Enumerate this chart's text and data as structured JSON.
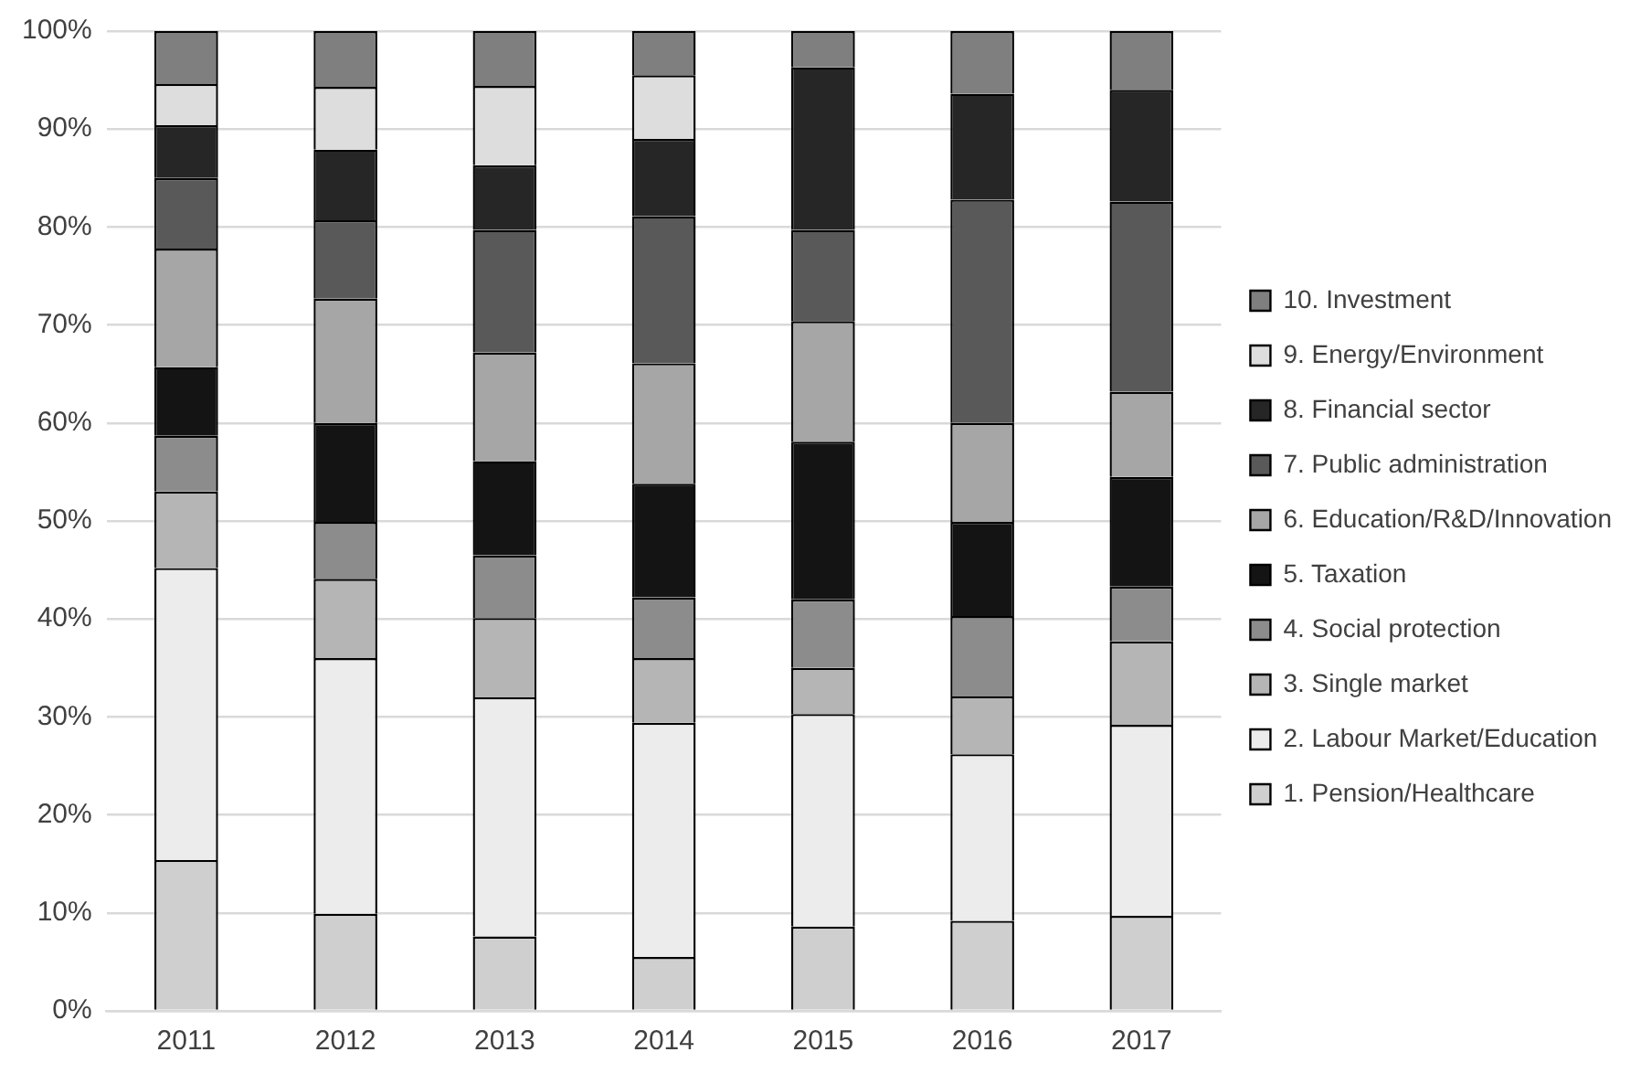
{
  "chart_data": {
    "type": "bar",
    "stacked": true,
    "categories": [
      "2011",
      "2012",
      "2013",
      "2014",
      "2015",
      "2016",
      "2017"
    ],
    "ylim": [
      0,
      100
    ],
    "yticks": [
      {
        "value": 0,
        "label": "0%"
      },
      {
        "value": 10,
        "label": "10%"
      },
      {
        "value": 20,
        "label": "20%"
      },
      {
        "value": 30,
        "label": "30%"
      },
      {
        "value": 40,
        "label": "40%"
      },
      {
        "value": 50,
        "label": "50%"
      },
      {
        "value": 60,
        "label": "60%"
      },
      {
        "value": 70,
        "label": "70%"
      },
      {
        "value": 80,
        "label": "80%"
      },
      {
        "value": 90,
        "label": "90%"
      },
      {
        "value": 100,
        "label": "100%"
      }
    ],
    "grid": "y",
    "legend": "right",
    "series": [
      {
        "name": "1. Pension/Healthcare",
        "color": "#cfcfcf",
        "values": [
          15.4,
          9.9,
          7.6,
          5.5,
          8.6,
          9.2,
          9.7
        ]
      },
      {
        "name": "2. Labour Market/Education",
        "color": "#ececec",
        "values": [
          29.8,
          26.1,
          24.4,
          23.9,
          21.7,
          17.0,
          19.5
        ]
      },
      {
        "name": "3. Single market",
        "color": "#b5b5b5",
        "values": [
          7.8,
          8.1,
          8.1,
          6.6,
          4.7,
          5.9,
          8.5
        ]
      },
      {
        "name": "4. Social protection",
        "color": "#8c8c8c",
        "values": [
          5.7,
          5.8,
          6.4,
          6.2,
          7.0,
          8.2,
          5.6
        ]
      },
      {
        "name": "5. Taxation",
        "color": "#141414",
        "values": [
          7.0,
          10.1,
          9.6,
          11.6,
          16.1,
          9.6,
          11.2
        ]
      },
      {
        "name": "6. Education/R&D/Innovation",
        "color": "#a6a6a6",
        "values": [
          12.1,
          12.7,
          11.1,
          12.3,
          12.3,
          10.1,
          8.7
        ]
      },
      {
        "name": "7. Public administration",
        "color": "#595959",
        "values": [
          7.2,
          8.0,
          12.5,
          15.0,
          9.3,
          22.8,
          19.4
        ]
      },
      {
        "name": "8. Financial sector",
        "color": "#262626",
        "values": [
          5.4,
          7.2,
          6.6,
          7.9,
          16.6,
          10.8,
          11.4
        ]
      },
      {
        "name": "9. Energy/Environment",
        "color": "#dddddd",
        "values": [
          4.2,
          6.4,
          8.1,
          6.5,
          0,
          0,
          0
        ]
      },
      {
        "name": "10. Investment",
        "color": "#7f7f7f",
        "values": [
          5.4,
          5.7,
          5.6,
          4.5,
          3.7,
          6.4,
          6.0
        ]
      }
    ]
  }
}
